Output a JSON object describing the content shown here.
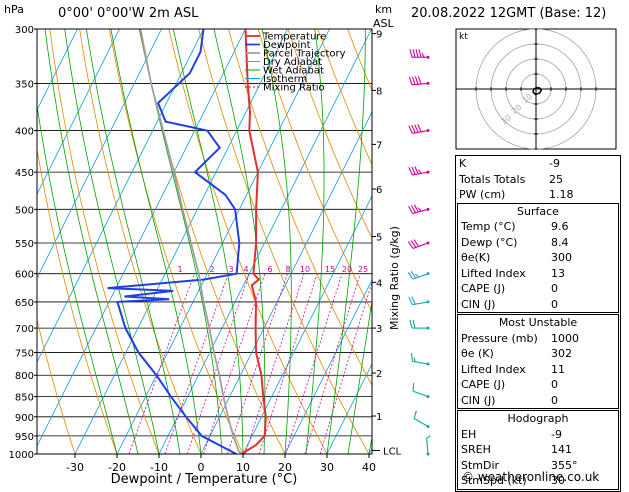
{
  "header": {
    "hpa": "hPa",
    "location": "0°00' 0°00'W 2m ASL",
    "km": "km",
    "asl": "ASL",
    "datetime": "20.08.2022 12GMT (Base: 12)"
  },
  "colors": {
    "temperature": "#e03030",
    "dewpoint": "#2040e0",
    "parcel": "#a0a0a0",
    "dry_adiabat": "#e08a00",
    "wet_adiabat": "#00a000",
    "isotherm": "#00a0e0",
    "mixing_ratio": "#d000a0"
  },
  "chart_data": {
    "type": "line",
    "title": "",
    "xlabel": "Dewpoint / Temperature (°C)",
    "ylabel": "Mixing Ratio (g/kg)",
    "x_ticks": [
      -30,
      -20,
      -10,
      0,
      10,
      20,
      30,
      40
    ],
    "xlim": [
      -35,
      40
    ],
    "pressure_levels": [
      300,
      350,
      400,
      450,
      500,
      550,
      600,
      650,
      700,
      750,
      800,
      850,
      900,
      950,
      1000
    ],
    "ylim_hpa": [
      1000,
      300
    ],
    "km_ticks": [
      {
        "km": "9",
        "p": 304
      },
      {
        "km": "8",
        "p": 357
      },
      {
        "km": "7",
        "p": 416
      },
      {
        "km": "6",
        "p": 472
      },
      {
        "km": "5",
        "p": 540
      },
      {
        "km": "4",
        "p": 615
      },
      {
        "km": "3",
        "p": 700
      },
      {
        "km": "2",
        "p": 795
      },
      {
        "km": "1",
        "p": 898
      }
    ],
    "lcl_label": "LCL",
    "lcl_p": 990,
    "mixing_ratio_labels": [
      "1",
      "2",
      "3",
      "4",
      "6",
      "8",
      "10",
      "15",
      "20",
      "25"
    ],
    "legend": [
      "Temperature",
      "Dewpoint",
      "Parcel Trajectory",
      "Dry Adiabat",
      "Wet Adiabat",
      "Isotherm",
      "Mixing Ratio"
    ],
    "legend_position": "top-right",
    "series": [
      {
        "name": "Temperature",
        "points": [
          {
            "p": 1000,
            "t": 9.6
          },
          {
            "p": 975,
            "t": 12
          },
          {
            "p": 950,
            "t": 13
          },
          {
            "p": 900,
            "t": 11
          },
          {
            "p": 850,
            "t": 8
          },
          {
            "p": 800,
            "t": 5
          },
          {
            "p": 750,
            "t": 1
          },
          {
            "p": 700,
            "t": -2
          },
          {
            "p": 650,
            "t": -5
          },
          {
            "p": 620,
            "t": -8
          },
          {
            "p": 610,
            "t": -7
          },
          {
            "p": 600,
            "t": -9
          },
          {
            "p": 550,
            "t": -12
          },
          {
            "p": 500,
            "t": -16
          },
          {
            "p": 450,
            "t": -20
          },
          {
            "p": 400,
            "t": -27
          },
          {
            "p": 380,
            "t": -29
          },
          {
            "p": 350,
            "t": -33
          },
          {
            "p": 300,
            "t": -40
          }
        ]
      },
      {
        "name": "Dewpoint",
        "points": [
          {
            "p": 1000,
            "t": 8.4
          },
          {
            "p": 950,
            "t": -2
          },
          {
            "p": 900,
            "t": -8
          },
          {
            "p": 850,
            "t": -14
          },
          {
            "p": 800,
            "t": -20
          },
          {
            "p": 750,
            "t": -27
          },
          {
            "p": 700,
            "t": -33
          },
          {
            "p": 650,
            "t": -38
          },
          {
            "p": 645,
            "t": -26
          },
          {
            "p": 640,
            "t": -37
          },
          {
            "p": 630,
            "t": -26
          },
          {
            "p": 625,
            "t": -42
          },
          {
            "p": 610,
            "t": -20
          },
          {
            "p": 600,
            "t": -13
          },
          {
            "p": 550,
            "t": -16
          },
          {
            "p": 500,
            "t": -21
          },
          {
            "p": 480,
            "t": -25
          },
          {
            "p": 450,
            "t": -35
          },
          {
            "p": 420,
            "t": -32
          },
          {
            "p": 400,
            "t": -37
          },
          {
            "p": 390,
            "t": -48
          },
          {
            "p": 370,
            "t": -52
          },
          {
            "p": 340,
            "t": -48
          },
          {
            "p": 320,
            "t": -48
          },
          {
            "p": 300,
            "t": -50
          }
        ]
      },
      {
        "name": "Parcel Trajectory",
        "points": [
          {
            "p": 1000,
            "t": 9.6
          },
          {
            "p": 990,
            "t": 8.5
          },
          {
            "p": 950,
            "t": 5.5
          },
          {
            "p": 900,
            "t": 2
          },
          {
            "p": 850,
            "t": -1.5
          },
          {
            "p": 800,
            "t": -5
          },
          {
            "p": 750,
            "t": -9
          },
          {
            "p": 700,
            "t": -13
          },
          {
            "p": 650,
            "t": -17.5
          },
          {
            "p": 600,
            "t": -22
          },
          {
            "p": 550,
            "t": -27.5
          },
          {
            "p": 500,
            "t": -33.5
          },
          {
            "p": 450,
            "t": -40
          },
          {
            "p": 400,
            "t": -47.5
          },
          {
            "p": 350,
            "t": -56
          },
          {
            "p": 300,
            "t": -65
          }
        ]
      }
    ],
    "wind_barbs": [
      {
        "p": 1000,
        "dir": 355,
        "spd": 5
      },
      {
        "p": 925,
        "dir": 300,
        "spd": 10
      },
      {
        "p": 850,
        "dir": 290,
        "spd": 10
      },
      {
        "p": 775,
        "dir": 280,
        "spd": 15
      },
      {
        "p": 700,
        "dir": 270,
        "spd": 20
      },
      {
        "p": 650,
        "dir": 260,
        "spd": 20
      },
      {
        "p": 600,
        "dir": 250,
        "spd": 25
      },
      {
        "p": 550,
        "dir": 250,
        "spd": 30
      },
      {
        "p": 500,
        "dir": 255,
        "spd": 35
      },
      {
        "p": 450,
        "dir": 260,
        "spd": 35
      },
      {
        "p": 400,
        "dir": 260,
        "spd": 40
      },
      {
        "p": 350,
        "dir": 265,
        "spd": 40
      },
      {
        "p": 325,
        "dir": 270,
        "spd": 45
      }
    ]
  },
  "hodograph": {
    "label": "kt",
    "ring_labels": [
      "10",
      "20",
      "30"
    ],
    "points": [
      {
        "u": 0.3,
        "v": -3.5
      },
      {
        "u": 2.5,
        "v": -2.5
      },
      {
        "u": 3.5,
        "v": -1
      },
      {
        "u": 2.5,
        "v": 0.6
      },
      {
        "u": 0.5,
        "v": 1
      },
      {
        "u": -1.5,
        "v": 0
      },
      {
        "u": -2,
        "v": -2
      },
      {
        "u": 0,
        "v": -4
      }
    ]
  },
  "indices": {
    "rows": [
      {
        "k": "K",
        "v": "-9"
      },
      {
        "k": "Totals Totals",
        "v": "25"
      },
      {
        "k": "PW (cm)",
        "v": "1.18"
      }
    ],
    "surface_title": "Surface",
    "surface": [
      {
        "k": "Temp (°C)",
        "v": "9.6"
      },
      {
        "k": "Dewp (°C)",
        "v": "8.4"
      },
      {
        "k": "θe(K)",
        "v": "300"
      },
      {
        "k": "Lifted Index",
        "v": "13"
      },
      {
        "k": "CAPE (J)",
        "v": "0"
      },
      {
        "k": "CIN (J)",
        "v": "0"
      }
    ],
    "mu_title": "Most Unstable",
    "mu": [
      {
        "k": "Pressure (mb)",
        "v": "1000"
      },
      {
        "k": "θe (K)",
        "v": "302"
      },
      {
        "k": "Lifted Index",
        "v": "11"
      },
      {
        "k": "CAPE (J)",
        "v": "0"
      },
      {
        "k": "CIN (J)",
        "v": "0"
      }
    ],
    "hodo_title": "Hodograph",
    "hodo": [
      {
        "k": "EH",
        "v": "-9"
      },
      {
        "k": "SREH",
        "v": "141"
      },
      {
        "k": "StmDir",
        "v": "355°"
      },
      {
        "k": "StmSpd (kt)",
        "v": "30"
      }
    ]
  },
  "credit": "© weatheronline.co.uk"
}
